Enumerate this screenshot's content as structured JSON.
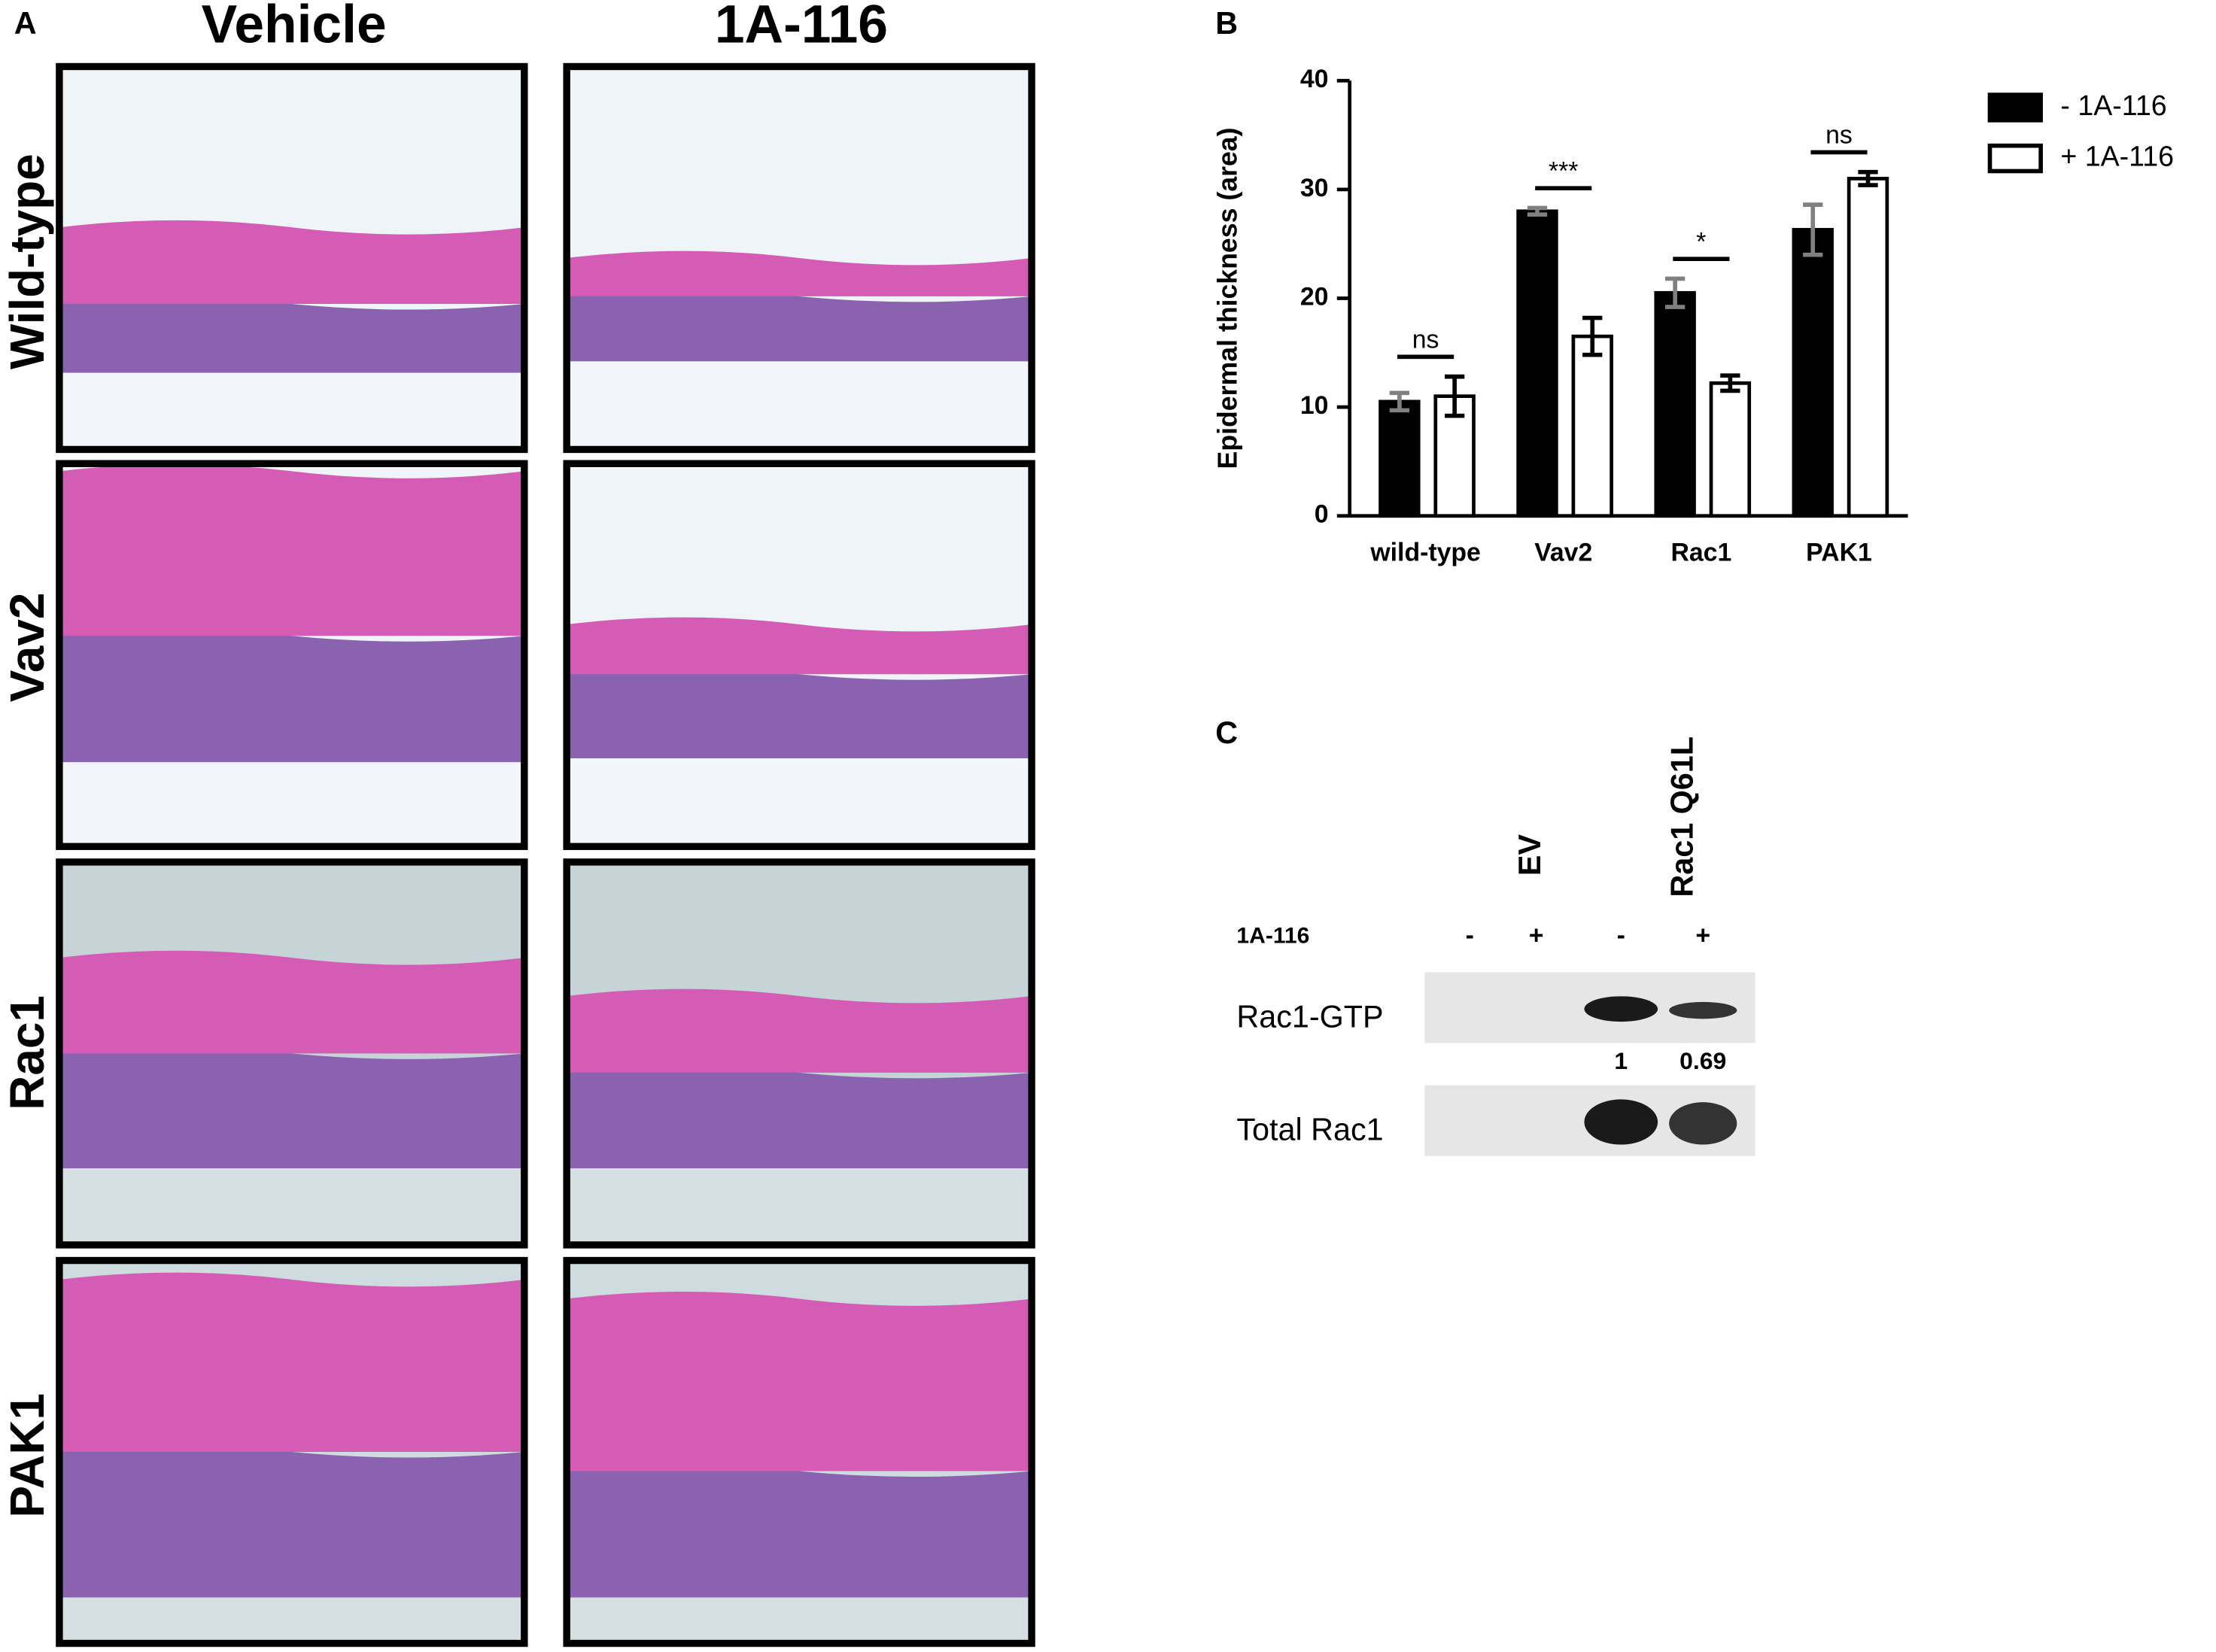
{
  "panel_labels": [
    "A",
    "B",
    "C"
  ],
  "panel_a": {
    "columns": [
      "Vehicle",
      "1A-116"
    ],
    "rows": [
      "Wild-type",
      "Vav2",
      "Rac1",
      "PAK1"
    ]
  },
  "chart_data": {
    "type": "bar",
    "y_label": "Epidermal thickness (area)",
    "categories": [
      "wild-type",
      "Vav2",
      "Rac1",
      "PAK1"
    ],
    "series": [
      {
        "name": "- 1A-116",
        "color": "#000000",
        "error_color": "#808080",
        "values": [
          10.5,
          28,
          20.5,
          26.3
        ],
        "errors": [
          0.8,
          0.3,
          1.3,
          2.3
        ]
      },
      {
        "name": "+ 1A-116",
        "color": "#ffffff",
        "error_color": "#000000",
        "values": [
          11,
          16.5,
          12.2,
          31
        ],
        "errors": [
          1.8,
          1.7,
          0.7,
          0.6
        ]
      }
    ],
    "annotations": [
      "ns",
      "***",
      "*",
      "ns"
    ],
    "ylim": [
      0,
      40
    ],
    "yticks": [
      0,
      10,
      20,
      30,
      40
    ],
    "legend": "right",
    "grid": false
  },
  "panel_c": {
    "lanes": [
      "EV",
      "Rac1 Q61L"
    ],
    "treatment_label": "1A-116",
    "treatment": [
      "-",
      "+",
      "-",
      "+"
    ],
    "blots": [
      {
        "label": "Rac1-GTP",
        "quantification": [
          1,
          0.69
        ]
      },
      {
        "label": "Total Rac1"
      }
    ]
  }
}
